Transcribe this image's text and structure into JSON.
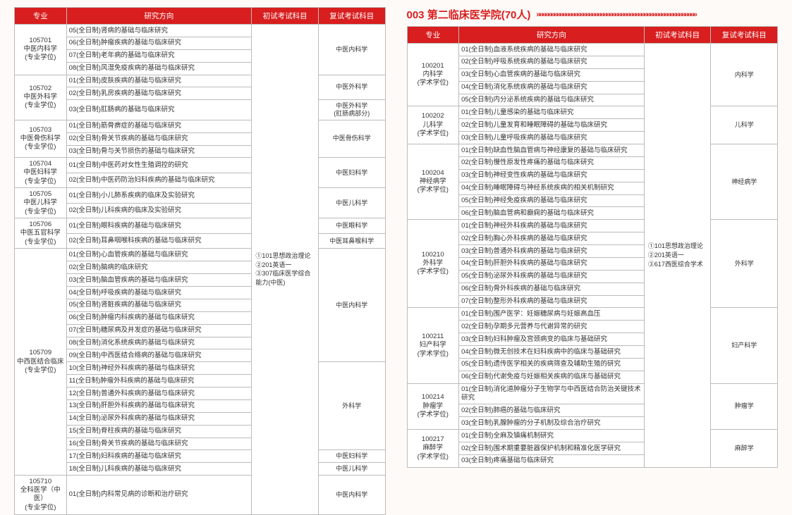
{
  "headers": {
    "major": "专业",
    "direction": "研究方向",
    "exam1": "初试考试科目",
    "exam2": "复试考试科目"
  },
  "left_exam1": "①101思想政治理论\n②201英语一\n③307临床医学综合能力(中医)",
  "left": [
    {
      "major": "105701\n中医内科学\n(专业学位)",
      "dirs": [
        "05(全日制)肾病的基础与临床研究",
        "06(全日制)肿瘤疾病的基础与临床研究",
        "07(全日制)老年病的基础与临床研究",
        "08(全日制)风湿免疫疾病的基础与临床研究"
      ],
      "exam2s": [
        {
          "txt": "中医内科学",
          "span": 4
        }
      ]
    },
    {
      "major": "105702\n中医外科学\n(专业学位)",
      "dirs": [
        "01(全日制)皮肤疾病的基础与临床研究",
        "02(全日制)乳房疾病的基础与临床研究",
        "03(全日制)肛肠病的基础与临床研究"
      ],
      "exam2s": [
        {
          "txt": "中医外科学",
          "span": 2
        },
        {
          "txt": "中医外科学\n(肛肠病部分)",
          "span": 1
        }
      ]
    },
    {
      "major": "105703\n中医骨伤科学\n(专业学位)",
      "dirs": [
        "01(全日制)筋骨痹症的基础与临床研究",
        "02(全日制)骨关节疾病的基础与临床研究",
        "03(全日制)骨与关节损伤的基础与临床研究"
      ],
      "exam2s": [
        {
          "txt": "中医骨伤科学",
          "span": 3
        }
      ]
    },
    {
      "major": "105704\n中医妇科学\n(专业学位)",
      "dirs": [
        "01(全日制)中医药对女性生殖调控的研究",
        "02(全日制)中医药防治妇科疾病的基础与临床研究"
      ],
      "exam2s": [
        {
          "txt": "中医妇科学",
          "span": 2
        }
      ]
    },
    {
      "major": "105705\n中医儿科学\n(专业学位)",
      "dirs": [
        "01(全日制)小儿肺系疾病的临床及实验研究",
        "02(全日制)儿科疾病的临床及实验研究"
      ],
      "exam2s": [
        {
          "txt": "中医儿科学",
          "span": 2
        }
      ]
    },
    {
      "major": "105706\n中医五官科学\n(专业学位)",
      "dirs": [
        "01(全日制)眼科疾病的基础与临床研究",
        "02(全日制)耳鼻咽喉科疾病的基础与临床研究"
      ],
      "exam2s": [
        {
          "txt": "中医眼科学",
          "span": 1
        },
        {
          "txt": "中医耳鼻喉科学",
          "span": 1
        }
      ]
    },
    {
      "major": "105709\n中西医结合临床\n(专业学位)",
      "dirs": [
        "01(全日制)心血管疾病的基础与临床研究",
        "02(全日制)脑病的临床研究",
        "03(全日制)脑血管疾病的基础与临床研究",
        "04(全日制)呼吸疾病的基础与临床研究",
        "05(全日制)肾脏疾病的基础与临床研究",
        "06(全日制)肿瘤内科疾病的基础与临床研究",
        "07(全日制)糖尿病及并发症的基础与临床研究",
        "08(全日制)消化系统疾病的基础与临床研究",
        "09(全日制)中西医结合络病的基础与临床研究",
        "10(全日制)神经外科疾病的基础与临床研究",
        "11(全日制)肿瘤外科疾病的基础与临床研究",
        "12(全日制)普通外科疾病的基础与临床研究",
        "13(全日制)肝胆外科疾病的基础与临床研究",
        "14(全日制)泌尿外科疾病的基础与临床研究",
        "15(全日制)脊柱疾病的基础与临床研究",
        "16(全日制)骨关节疾病的基础与临床研究",
        "17(全日制)妇科疾病的基础与临床研究",
        "18(全日制)儿科疾病的基础与临床研究"
      ],
      "exam2s": [
        {
          "txt": "中医内科学",
          "span": 9
        },
        {
          "txt": "外科学",
          "span": 7
        },
        {
          "txt": "中医妇科学",
          "span": 1
        },
        {
          "txt": "中医儿科学",
          "span": 1
        }
      ]
    },
    {
      "major": "105710\n全科医学（中医）\n(专业学位)",
      "dirs": [
        "01(全日制)内科常见病的诊断和治疗研究"
      ],
      "exam2s": [
        {
          "txt": "中医内科学",
          "span": 1
        }
      ]
    }
  ],
  "right_title": "003 第二临床医学院(70人)",
  "right_exam1": "①101思想政治理论\n②201英语一\n③617西医综合学术",
  "right": [
    {
      "major": "100201\n内科学\n(学术学位)",
      "dirs": [
        "01(全日制)血液系统疾病的基础与临床研究",
        "02(全日制)呼吸系统疾病的基础与临床研究",
        "03(全日制)心血管疾病的基础与临床研究",
        "04(全日制)消化系统疾病的基础与临床研究",
        "05(全日制)内分泌系统疾病的基础与临床研究"
      ],
      "exam2s": [
        {
          "txt": "内科学",
          "span": 5
        }
      ]
    },
    {
      "major": "100202\n儿科学\n(学术学位)",
      "dirs": [
        "01(全日制)儿童感染的基础与临床研究",
        "02(全日制)儿童发育和睡眠障碍的基础与临床研究",
        "03(全日制)儿童呼吸疾病的基础与临床研究"
      ],
      "exam2s": [
        {
          "txt": "儿科学",
          "span": 3
        }
      ]
    },
    {
      "major": "100204\n神经病学\n(学术学位)",
      "dirs": [
        "01(全日制)缺血性脑血管病与神经康复的基础与临床研究",
        "02(全日制)慢性原发性疼痛的基础与临床研究",
        "03(全日制)神经变性疾病的基础与临床研究",
        "04(全日制)睡眠障碍与神经系统疾病的相关机制研究",
        "05(全日制)神经免疫疾病的基础与临床研究",
        "06(全日制)脑血管病和癫痫的基础与临床研究"
      ],
      "exam2s": [
        {
          "txt": "神经病学",
          "span": 6
        }
      ]
    },
    {
      "major": "100210\n外科学\n(学术学位)",
      "dirs": [
        "01(全日制)神经外科疾病的基础与临床研究",
        "02(全日制)胸心外科疾病的基础与临床研究",
        "03(全日制)普通外科疾病的基础与临床研究",
        "04(全日制)肝胆外科疾病的基础与临床研究",
        "05(全日制)泌尿外科疾病的基础与临床研究",
        "06(全日制)骨外科疾病的基础与临床研究",
        "07(全日制)整形外科疾病的基础与临床研究"
      ],
      "exam2s": [
        {
          "txt": "外科学",
          "span": 7
        }
      ]
    },
    {
      "major": "100211\n妇产科学\n(学术学位)",
      "dirs": [
        "01(全日制)围产医学：妊娠糖尿病与妊娠高血压",
        "02(全日制)孕期多元营养与代谢异常的研究",
        "03(全日制)妇科肿瘤及宫颈病变的临床与基础研究",
        "04(全日制)微无创技术在妇科疾病中的临床与基础研究",
        "05(全日制)遗传医学相关的疾病筛查及辅助生殖的研究",
        "06(全日制)代谢免疫与妊娠相关疾病的临床与基础研究"
      ],
      "exam2s": [
        {
          "txt": "妇产科学",
          "span": 6
        }
      ]
    },
    {
      "major": "100214\n肿瘤学\n(学术学位)",
      "dirs": [
        "01(全日制)消化道肿瘤分子生物学与中西医结合防治关键技术研究",
        "02(全日制)肺癌的基础与临床研究",
        "03(全日制)乳腺肿瘤的分子机制及综合治疗研究"
      ],
      "exam2s": [
        {
          "txt": "肿瘤学",
          "span": 3
        }
      ]
    },
    {
      "major": "100217\n麻醉学\n(学术学位)",
      "dirs": [
        "01(全日制)全麻及镇痛机制研究",
        "02(全日制)围术期重要脏器保护机制和精准化医学研究",
        "03(全日制)疼痛基础与临床研究"
      ],
      "exam2s": [
        {
          "txt": "麻醉学",
          "span": 3
        }
      ]
    }
  ]
}
